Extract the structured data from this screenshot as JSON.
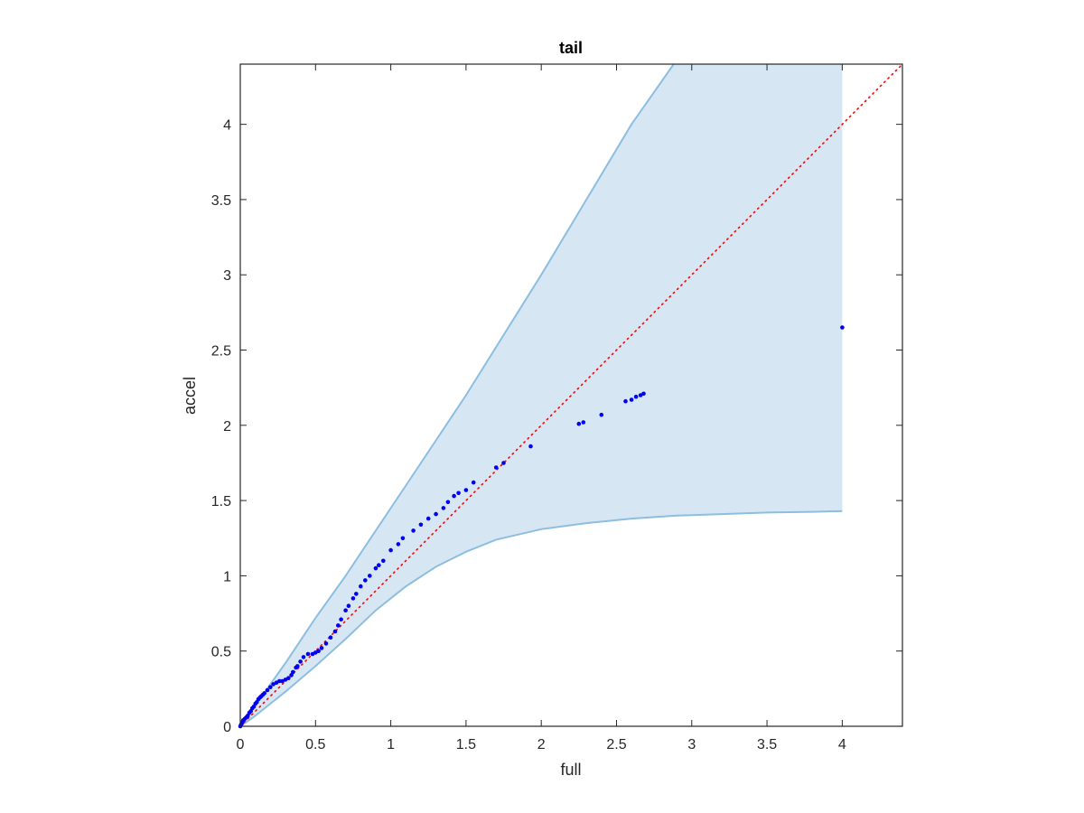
{
  "chart_data": {
    "type": "scatter",
    "title": "tail",
    "xlabel": "full",
    "ylabel": "accel",
    "xlim": [
      0,
      4.4
    ],
    "ylim": [
      0,
      4.4
    ],
    "xticks": [
      {
        "value": 0,
        "label": "0"
      },
      {
        "value": 0.5,
        "label": "0.5"
      },
      {
        "value": 1,
        "label": "1"
      },
      {
        "value": 1.5,
        "label": "1.5"
      },
      {
        "value": 2,
        "label": "2"
      },
      {
        "value": 2.5,
        "label": "2.5"
      },
      {
        "value": 3,
        "label": "3"
      },
      {
        "value": 3.5,
        "label": "3.5"
      },
      {
        "value": 4,
        "label": "4"
      }
    ],
    "yticks": [
      {
        "value": 0,
        "label": "0"
      },
      {
        "value": 0.5,
        "label": "0.5"
      },
      {
        "value": 1,
        "label": "1"
      },
      {
        "value": 1.5,
        "label": "1.5"
      },
      {
        "value": 2,
        "label": "2"
      },
      {
        "value": 2.5,
        "label": "2.5"
      },
      {
        "value": 3,
        "label": "3"
      },
      {
        "value": 3.5,
        "label": "3.5"
      },
      {
        "value": 4,
        "label": "4"
      }
    ],
    "grid": false,
    "colors": {
      "band_fill": "#d6e7f3",
      "band_edge": "#8dbee0",
      "points": "#0000ee",
      "reference": "#ff0000",
      "axes": "#262626"
    },
    "reference_line": {
      "style": "dotted",
      "x": [
        0,
        4.4
      ],
      "y": [
        0,
        4.4
      ]
    },
    "band": {
      "upper": {
        "x": [
          0,
          0.1,
          0.2,
          0.3,
          0.5,
          0.7,
          0.9,
          1.1,
          1.3,
          1.5,
          1.7,
          2.0,
          2.3,
          2.6,
          2.88
        ],
        "y": [
          0,
          0.14,
          0.28,
          0.42,
          0.72,
          1.0,
          1.3,
          1.6,
          1.9,
          2.2,
          2.52,
          3.0,
          3.5,
          4.0,
          4.4
        ]
      },
      "lower": {
        "x": [
          0,
          0.1,
          0.2,
          0.3,
          0.5,
          0.7,
          0.9,
          1.1,
          1.3,
          1.5,
          1.7,
          2.0,
          2.3,
          2.6,
          2.9,
          3.2,
          3.5,
          3.8,
          4.0
        ],
        "y": [
          0,
          0.07,
          0.15,
          0.23,
          0.4,
          0.58,
          0.77,
          0.93,
          1.06,
          1.16,
          1.24,
          1.31,
          1.35,
          1.38,
          1.4,
          1.41,
          1.42,
          1.425,
          1.43
        ]
      },
      "right_x": 4.0
    },
    "series": [
      {
        "x": [
          0.0,
          0.005,
          0.01,
          0.015,
          0.02,
          0.03,
          0.04,
          0.05,
          0.06,
          0.07,
          0.08,
          0.09,
          0.1,
          0.11,
          0.12,
          0.13,
          0.14,
          0.15,
          0.16,
          0.18,
          0.2,
          0.22,
          0.24,
          0.26,
          0.28,
          0.3,
          0.32,
          0.34,
          0.35,
          0.37,
          0.38,
          0.4,
          0.42,
          0.45,
          0.48,
          0.5,
          0.52,
          0.54,
          0.57,
          0.6,
          0.63,
          0.65,
          0.67,
          0.7,
          0.72,
          0.75,
          0.77,
          0.8,
          0.83,
          0.86,
          0.9,
          0.92,
          0.95,
          1.0,
          1.05,
          1.08,
          1.15,
          1.2,
          1.25,
          1.3,
          1.35,
          1.38,
          1.42,
          1.45,
          1.5,
          1.55,
          1.7,
          1.75,
          1.93,
          2.25,
          2.28,
          2.4,
          2.56,
          2.6,
          2.63,
          2.66,
          2.68,
          4.0
        ],
        "y": [
          0.0,
          0.01,
          0.02,
          0.03,
          0.04,
          0.05,
          0.06,
          0.07,
          0.09,
          0.1,
          0.12,
          0.13,
          0.15,
          0.16,
          0.18,
          0.19,
          0.2,
          0.21,
          0.22,
          0.24,
          0.26,
          0.28,
          0.29,
          0.3,
          0.3,
          0.31,
          0.32,
          0.34,
          0.36,
          0.39,
          0.4,
          0.43,
          0.46,
          0.48,
          0.48,
          0.49,
          0.5,
          0.52,
          0.55,
          0.59,
          0.63,
          0.67,
          0.71,
          0.77,
          0.8,
          0.85,
          0.88,
          0.93,
          0.97,
          1.0,
          1.05,
          1.07,
          1.1,
          1.17,
          1.21,
          1.25,
          1.3,
          1.34,
          1.38,
          1.41,
          1.45,
          1.49,
          1.53,
          1.55,
          1.57,
          1.62,
          1.72,
          1.75,
          1.86,
          2.01,
          2.02,
          2.07,
          2.16,
          2.17,
          2.19,
          2.2,
          2.21,
          2.65
        ]
      }
    ]
  }
}
